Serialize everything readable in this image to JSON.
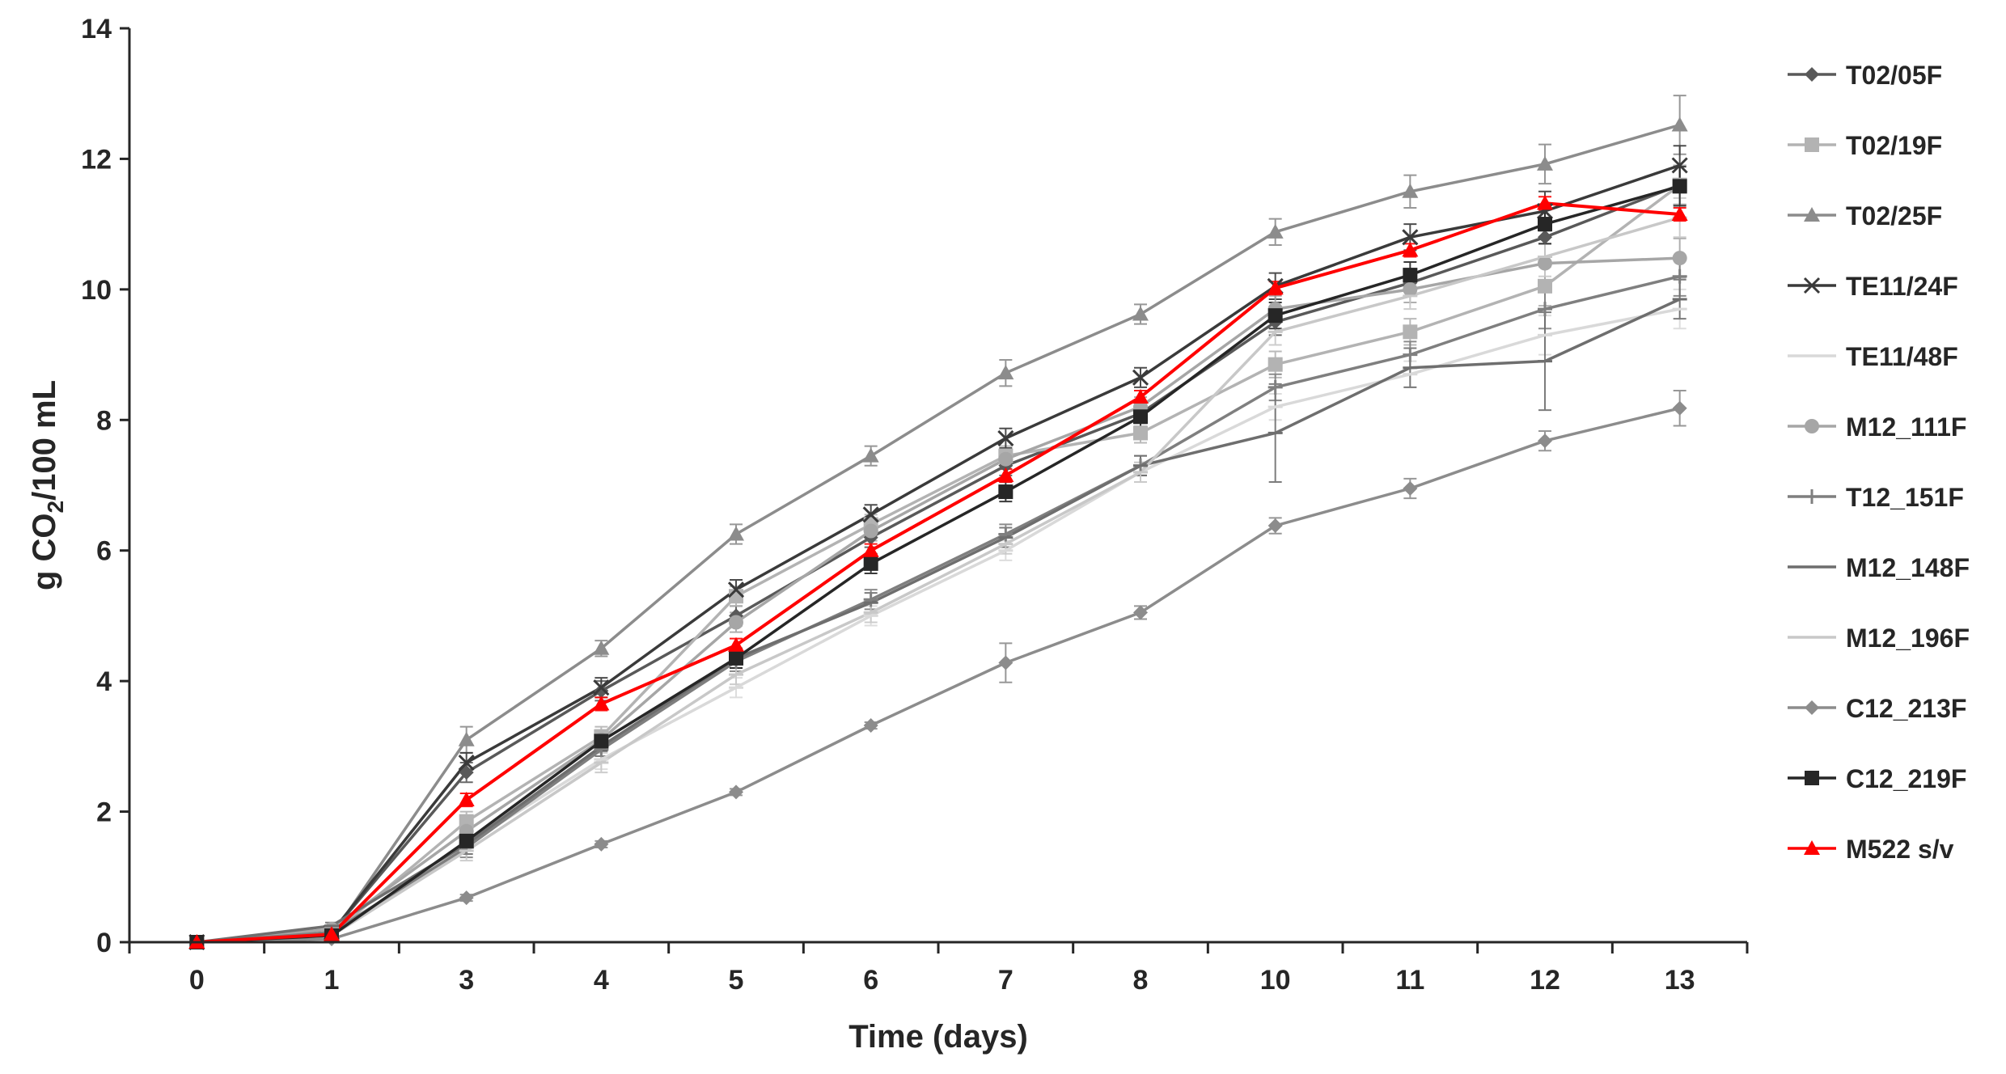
{
  "chart_data": {
    "type": "line",
    "title": "",
    "xlabel": "Time (days)",
    "ylabel_parts": [
      "g CO",
      "2",
      "/100 mL"
    ],
    "categories": [
      "0",
      "1",
      "3",
      "4",
      "5",
      "6",
      "7",
      "8",
      "10",
      "11",
      "12",
      "13"
    ],
    "ylim": [
      0,
      14
    ],
    "yticks": [
      "0",
      "2",
      "4",
      "6",
      "8",
      "10",
      "12",
      "14"
    ],
    "grid": false,
    "legend_position": "right",
    "series": [
      {
        "name": "T02/05F",
        "marker": "diamond",
        "color": "#595959",
        "values": [
          0,
          0.15,
          2.6,
          3.85,
          5.0,
          6.2,
          7.3,
          8.1,
          9.5,
          10.1,
          10.8,
          11.6
        ],
        "errors": [
          0,
          0.05,
          0.15,
          0.15,
          0.15,
          0.15,
          0.15,
          0.15,
          0.2,
          0.2,
          0.3,
          0.3
        ]
      },
      {
        "name": "T02/19F",
        "marker": "square",
        "color": "#b3b3b3",
        "values": [
          0,
          0.12,
          1.85,
          3.15,
          5.3,
          6.4,
          7.45,
          7.8,
          8.85,
          9.35,
          10.05,
          11.6
        ],
        "errors": [
          0,
          0.05,
          0.15,
          0.15,
          0.15,
          0.15,
          0.15,
          0.15,
          0.2,
          0.2,
          0.3,
          0.3
        ]
      },
      {
        "name": "T02/25F",
        "marker": "triangle",
        "color": "#8c8c8c",
        "values": [
          0,
          0.1,
          3.1,
          4.5,
          6.25,
          7.45,
          8.72,
          9.62,
          10.88,
          11.5,
          11.92,
          12.52
        ],
        "errors": [
          0,
          0.05,
          0.2,
          0.12,
          0.15,
          0.15,
          0.2,
          0.15,
          0.2,
          0.25,
          0.3,
          0.45
        ]
      },
      {
        "name": "TE11/24F",
        "marker": "x",
        "color": "#3a3a3a",
        "values": [
          0,
          0.15,
          2.75,
          3.9,
          5.4,
          6.55,
          7.72,
          8.65,
          10.05,
          10.8,
          11.2,
          11.9
        ],
        "errors": [
          0,
          0.05,
          0.15,
          0.15,
          0.15,
          0.15,
          0.15,
          0.15,
          0.2,
          0.2,
          0.3,
          0.3
        ]
      },
      {
        "name": "TE11/48F",
        "marker": "dash",
        "color": "#d9d9d9",
        "values": [
          0,
          0.12,
          1.5,
          2.8,
          3.9,
          5.0,
          6.0,
          7.2,
          8.2,
          8.7,
          9.3,
          9.7
        ],
        "errors": [
          0,
          0.05,
          0.15,
          0.15,
          0.15,
          0.15,
          0.15,
          0.15,
          0.2,
          0.2,
          0.3,
          0.3
        ]
      },
      {
        "name": "M12_111F",
        "marker": "circle",
        "color": "#a6a6a6",
        "values": [
          0,
          0.2,
          1.7,
          3.1,
          4.9,
          6.3,
          7.4,
          8.2,
          9.7,
          10.0,
          10.4,
          10.48
        ],
        "errors": [
          0,
          0.05,
          0.15,
          0.15,
          0.15,
          0.15,
          0.15,
          0.15,
          0.2,
          0.2,
          0.3,
          0.3
        ]
      },
      {
        "name": "T12_151F",
        "marker": "plus",
        "color": "#7f7f7f",
        "values": [
          0,
          0.15,
          1.45,
          2.95,
          4.3,
          5.25,
          6.25,
          7.3,
          8.5,
          9.0,
          9.7,
          10.2
        ],
        "errors": [
          0,
          0.05,
          0.15,
          0.15,
          0.15,
          0.15,
          0.15,
          0.15,
          0.2,
          0.2,
          0.3,
          0.3
        ]
      },
      {
        "name": "M12_148F",
        "marker": "dash",
        "color": "#6e6e6e",
        "values": [
          0,
          0.25,
          1.5,
          3.0,
          4.35,
          5.2,
          6.2,
          7.3,
          7.8,
          8.8,
          8.9,
          9.85
        ],
        "errors": [
          0,
          0.05,
          0.15,
          0.15,
          0.15,
          0.15,
          0.15,
          0.15,
          0.75,
          0.3,
          0.75,
          0.3
        ]
      },
      {
        "name": "M12_196F",
        "marker": "dash",
        "color": "#c8c8c8",
        "values": [
          0,
          0.1,
          1.4,
          2.75,
          4.1,
          5.05,
          6.1,
          7.2,
          9.35,
          9.9,
          10.5,
          11.1
        ],
        "errors": [
          0,
          0.05,
          0.15,
          0.15,
          0.15,
          0.15,
          0.15,
          0.15,
          0.2,
          0.2,
          0.3,
          0.3
        ]
      },
      {
        "name": "C12_213F",
        "marker": "diamond",
        "color": "#8c8c8c",
        "values": [
          0,
          0.05,
          0.68,
          1.5,
          2.3,
          3.32,
          4.28,
          5.05,
          6.38,
          6.95,
          7.68,
          8.18
        ],
        "errors": [
          0,
          0.02,
          0.05,
          0.05,
          0.05,
          0.05,
          0.3,
          0.1,
          0.12,
          0.15,
          0.15,
          0.27
        ]
      },
      {
        "name": "C12_219F",
        "marker": "square",
        "color": "#262626",
        "values": [
          0,
          0.1,
          1.55,
          3.08,
          4.35,
          5.8,
          6.9,
          8.05,
          9.6,
          10.22,
          11.0,
          11.58
        ],
        "errors": [
          0,
          0.05,
          0.15,
          0.15,
          0.15,
          0.15,
          0.15,
          0.15,
          0.2,
          0.2,
          0.3,
          0.3
        ]
      },
      {
        "name": "M522 s/v",
        "marker": "triangle",
        "color": "#ff0000",
        "values": [
          0,
          0.12,
          2.18,
          3.65,
          4.55,
          6.0,
          7.15,
          8.35,
          10.02,
          10.6,
          11.32,
          11.15
        ],
        "errors": [
          0,
          0.05,
          0.1,
          0.1,
          0.1,
          0.1,
          0.1,
          0.1,
          0.1,
          0.1,
          0.1,
          0.1
        ]
      }
    ]
  }
}
